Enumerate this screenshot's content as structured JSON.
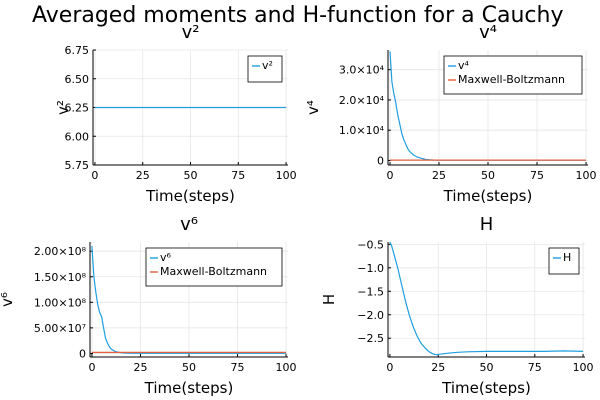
{
  "title": "Averaged moments and H-function for a Cauchy",
  "colors": {
    "series1": "#1f9fe0",
    "series2": "#e2603f"
  },
  "chart_data": [
    {
      "type": "line",
      "title": "v²",
      "xlabel": "Time(steps)",
      "ylabel": "v²",
      "xlim": [
        -1,
        101
      ],
      "ylim": [
        5.75,
        6.75
      ],
      "xticks": [
        0,
        25,
        50,
        75,
        100
      ],
      "xtick_labels": [
        "0",
        "25",
        "50",
        "75",
        "100"
      ],
      "yticks": [
        5.75,
        6.0,
        6.25,
        6.5,
        6.75
      ],
      "ytick_labels": [
        "5.75",
        "6.00",
        "6.25",
        "6.50",
        "6.75"
      ],
      "grid": true,
      "legend": "top-right",
      "series": [
        {
          "name": "v²",
          "color": "#1f9fe0",
          "x": [
            0,
            25,
            50,
            75,
            100
          ],
          "y": [
            6.25,
            6.25,
            6.25,
            6.25,
            6.25
          ]
        }
      ]
    },
    {
      "type": "line",
      "title": "v⁴",
      "xlabel": "Time(steps)",
      "ylabel": "v⁴",
      "xlim": [
        -1,
        101
      ],
      "ylim": [
        -1500,
        36500
      ],
      "xticks": [
        0,
        25,
        50,
        75,
        100
      ],
      "xtick_labels": [
        "0",
        "25",
        "50",
        "75",
        "100"
      ],
      "yticks": [
        0,
        10000,
        20000,
        30000
      ],
      "ytick_labels": [
        "0",
        "1.0×10⁴",
        "2.0×10⁴",
        "3.0×10⁴"
      ],
      "grid": true,
      "legend": "top-right",
      "series": [
        {
          "name": "v⁴",
          "color": "#1f9fe0",
          "x": [
            0,
            1,
            2,
            3,
            4,
            5,
            6,
            7,
            8,
            9,
            10,
            12,
            14,
            16,
            18,
            20,
            22,
            25,
            30,
            40,
            50,
            60,
            70,
            80,
            90,
            100
          ],
          "y": [
            36000,
            26000,
            22000,
            19000,
            15000,
            12000,
            9000,
            7000,
            5500,
            4000,
            3000,
            1800,
            1100,
            700,
            400,
            250,
            150,
            100,
            80,
            70,
            70,
            70,
            70,
            70,
            70,
            70
          ]
        },
        {
          "name": "Maxwell-Boltzmann",
          "color": "#e2603f",
          "x": [
            0,
            100
          ],
          "y": [
            117,
            117
          ]
        }
      ]
    },
    {
      "type": "line",
      "title": "v⁶",
      "xlabel": "Time(steps)",
      "ylabel": "v⁶",
      "xlim": [
        -1,
        101
      ],
      "ylim": [
        -7000000,
        218000000
      ],
      "xticks": [
        0,
        25,
        50,
        75,
        100
      ],
      "xtick_labels": [
        "0",
        "25",
        "50",
        "75",
        "100"
      ],
      "yticks": [
        0,
        50000000,
        100000000,
        150000000,
        200000000
      ],
      "ytick_labels": [
        "0",
        "5.00×10⁷",
        "1.00×10⁸",
        "1.50×10⁸",
        "2.00×10⁸"
      ],
      "grid": true,
      "legend": "top-right",
      "series": [
        {
          "name": "v⁶",
          "color": "#1f9fe0",
          "x": [
            0,
            1,
            2,
            3,
            4,
            5,
            6,
            7,
            8,
            9,
            10,
            12,
            14,
            16,
            20,
            25,
            30,
            40,
            50,
            60,
            70,
            80,
            90,
            100
          ],
          "y": [
            210000000,
            150000000,
            120000000,
            95000000,
            80000000,
            72000000,
            50000000,
            30000000,
            20000000,
            13000000,
            8000000,
            4000000,
            2000000,
            1000000,
            500000,
            300000,
            200000,
            200000,
            200000,
            200000,
            200000,
            200000,
            200000,
            200000
          ]
        },
        {
          "name": "Maxwell-Boltzmann",
          "color": "#e2603f",
          "x": [
            0,
            100
          ],
          "y": [
            2000000,
            2000000
          ]
        }
      ]
    },
    {
      "type": "line",
      "title": "H",
      "xlabel": "Time(steps)",
      "ylabel": "H",
      "xlim": [
        -1,
        101
      ],
      "ylim": [
        -2.9,
        -0.45
      ],
      "xticks": [
        0,
        25,
        50,
        75,
        100
      ],
      "xtick_labels": [
        "0",
        "25",
        "50",
        "75",
        "100"
      ],
      "yticks": [
        -2.5,
        -2.0,
        -1.5,
        -1.0,
        -0.5
      ],
      "ytick_labels": [
        "−2.5",
        "−2.0",
        "−1.5",
        "−1.0",
        "−0.5"
      ],
      "grid": true,
      "legend": "top-right",
      "series": [
        {
          "name": "H",
          "color": "#1f9fe0",
          "x": [
            0,
            1,
            2,
            4,
            6,
            8,
            10,
            12,
            14,
            16,
            18,
            20,
            22,
            24,
            26,
            30,
            35,
            40,
            50,
            60,
            70,
            80,
            90,
            100
          ],
          "y": [
            -0.45,
            -0.55,
            -0.7,
            -1.0,
            -1.35,
            -1.7,
            -2.0,
            -2.25,
            -2.45,
            -2.6,
            -2.7,
            -2.78,
            -2.83,
            -2.85,
            -2.84,
            -2.82,
            -2.8,
            -2.79,
            -2.78,
            -2.78,
            -2.78,
            -2.78,
            -2.77,
            -2.78
          ]
        }
      ]
    }
  ]
}
